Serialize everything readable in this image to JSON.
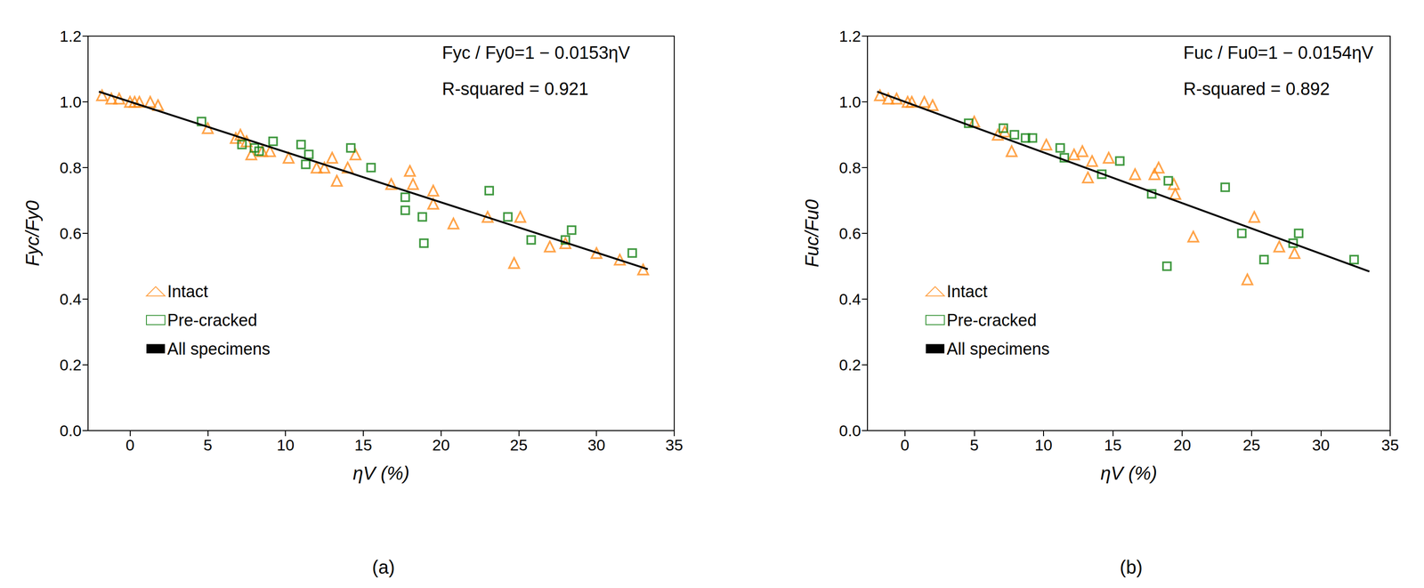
{
  "chart_data": [
    {
      "type": "scatter",
      "title": "(a)",
      "x_label": "ηV (%)",
      "y_label": "Fyc/Fy0",
      "annotations": [
        "Fyc / Fy0=1 − 0.0153ηV",
        "R-squared = 0.921"
      ],
      "xlim": [
        -2.7,
        35
      ],
      "xticks": [
        0,
        5,
        10,
        15,
        20,
        25,
        30,
        35
      ],
      "ylim": [
        0,
        1.2
      ],
      "yticks": [
        {
          "value": 0,
          "label": "0.0"
        },
        0.2,
        0.4,
        0.6,
        0.8,
        {
          "value": 1,
          "label": "1.0"
        },
        1.2
      ],
      "grid": false,
      "legend": "lower left",
      "series": [
        {
          "name": "Intact",
          "type": "scatter",
          "marker": "triangle",
          "color": "#ff8c1a",
          "x": [
            -1.8,
            -1.2,
            -0.7,
            0,
            0.3,
            0.6,
            1.3,
            1.8,
            5,
            6.8,
            7.1,
            7.5,
            7.8,
            8.5,
            9,
            10.2,
            12,
            12.5,
            13,
            13.3,
            14,
            14.5,
            16.8,
            18,
            18.2,
            19.5,
            19.5,
            20.8,
            23,
            24.7,
            25.1,
            27,
            28,
            30,
            31.5,
            33
          ],
          "values": [
            1.02,
            1.01,
            1.01,
            1.0,
            1.0,
            1.0,
            1.0,
            0.99,
            0.92,
            0.89,
            0.9,
            0.88,
            0.84,
            0.85,
            0.85,
            0.83,
            0.8,
            0.8,
            0.83,
            0.76,
            0.8,
            0.84,
            0.75,
            0.79,
            0.75,
            0.73,
            0.69,
            0.63,
            0.65,
            0.51,
            0.65,
            0.56,
            0.57,
            0.54,
            0.52,
            0.49
          ]
        },
        {
          "name": "Pre-cracked",
          "type": "scatter",
          "marker": "square",
          "color": "#108010",
          "x": [
            4.6,
            7.2,
            8,
            8.3,
            9.2,
            11,
            11.3,
            11.5,
            14.2,
            15.5,
            17.7,
            17.7,
            18.8,
            18.9,
            23.1,
            24.3,
            25.8,
            28,
            28.4,
            32.3
          ],
          "values": [
            0.94,
            0.87,
            0.86,
            0.85,
            0.88,
            0.87,
            0.81,
            0.84,
            0.86,
            0.8,
            0.71,
            0.67,
            0.65,
            0.57,
            0.73,
            0.65,
            0.58,
            0.58,
            0.61,
            0.54
          ]
        },
        {
          "name": "All specimens",
          "type": "line",
          "line_style": "solid",
          "color": "#000000",
          "x": [
            -2,
            33.3
          ],
          "values": [
            1.031,
            0.491
          ]
        }
      ]
    },
    {
      "type": "scatter",
      "title": "(b)",
      "x_label": "ηV (%)",
      "y_label": "Fuc/Fu0",
      "annotations": [
        "Fuc / Fu0=1 − 0.0154ηV",
        "R-squared = 0.892"
      ],
      "xlim": [
        -2.7,
        35
      ],
      "xticks": [
        0,
        5,
        10,
        15,
        20,
        25,
        30,
        35
      ],
      "ylim": [
        0,
        1.2
      ],
      "yticks": [
        {
          "value": 0,
          "label": "0.0"
        },
        0.2,
        0.4,
        0.6,
        0.8,
        {
          "value": 1,
          "label": "1.0"
        },
        1.2
      ],
      "grid": false,
      "legend": "lower left",
      "series": [
        {
          "name": "Intact",
          "type": "scatter",
          "marker": "triangle",
          "color": "#ff8c1a",
          "x": [
            -1.8,
            -1.2,
            -0.6,
            0.2,
            0.5,
            1.4,
            2,
            5,
            6.7,
            7.2,
            7.7,
            10.2,
            12.2,
            12.8,
            13.2,
            13.5,
            14.7,
            16.6,
            18,
            18.3,
            19.4,
            19.5,
            20.8,
            24.7,
            25.2,
            27,
            28.1
          ],
          "values": [
            1.02,
            1.01,
            1.01,
            1.0,
            1.0,
            1.0,
            0.99,
            0.94,
            0.9,
            0.91,
            0.85,
            0.87,
            0.84,
            0.85,
            0.77,
            0.82,
            0.83,
            0.78,
            0.78,
            0.8,
            0.75,
            0.72,
            0.59,
            0.46,
            0.65,
            0.56,
            0.54
          ]
        },
        {
          "name": "Pre-cracked",
          "type": "scatter",
          "marker": "square",
          "color": "#108010",
          "x": [
            4.6,
            7.1,
            7.9,
            8.7,
            9.2,
            11.2,
            11.5,
            14.2,
            15.5,
            17.8,
            18.9,
            19,
            23.1,
            24.3,
            25.9,
            28,
            28.4,
            32.4
          ],
          "values": [
            0.935,
            0.92,
            0.9,
            0.89,
            0.89,
            0.86,
            0.83,
            0.78,
            0.82,
            0.72,
            0.5,
            0.76,
            0.74,
            0.6,
            0.52,
            0.57,
            0.6,
            0.52
          ]
        },
        {
          "name": "All specimens",
          "type": "line",
          "line_style": "solid",
          "color": "#000000",
          "x": [
            -2,
            33.5
          ],
          "values": [
            1.031,
            0.484
          ]
        }
      ]
    }
  ]
}
